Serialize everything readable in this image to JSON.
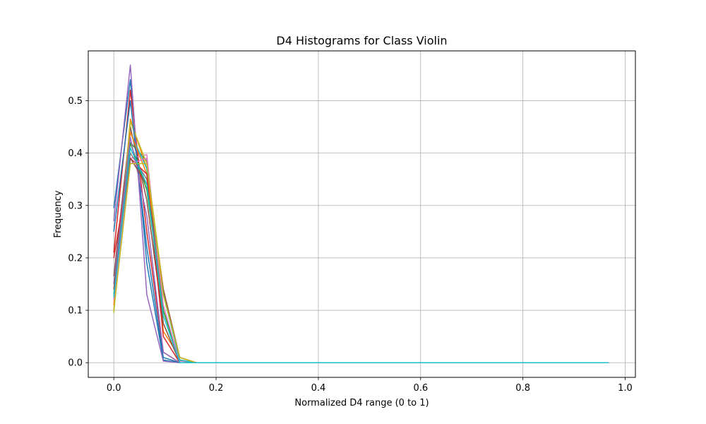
{
  "chart_data": {
    "type": "line",
    "title": "D4 Histograms for Class Violin",
    "xlabel": "Normalized D4 range (0 to 1)",
    "ylabel": "Frequency",
    "xlim": [
      -0.05,
      1.02
    ],
    "ylim": [
      -0.028,
      0.595
    ],
    "xticks": [
      0.0,
      0.2,
      0.4,
      0.6,
      0.8,
      1.0
    ],
    "xtick_labels": [
      "0.0",
      "0.2",
      "0.4",
      "0.6",
      "0.8",
      "1.0"
    ],
    "yticks": [
      0.0,
      0.1,
      0.2,
      0.3,
      0.4,
      0.5
    ],
    "ytick_labels": [
      "0.0",
      "0.1",
      "0.2",
      "0.3",
      "0.4",
      "0.5"
    ],
    "grid": true,
    "legend": "none",
    "x": [
      0.0,
      0.0323,
      0.0645,
      0.0968,
      0.129,
      0.1613,
      0.1935,
      0.2258,
      0.2581,
      0.2903,
      0.3226,
      0.3548,
      0.3871,
      0.4194,
      0.4516,
      0.4839,
      0.5161,
      0.5484,
      0.5806,
      0.6129,
      0.6452,
      0.6774,
      0.7097,
      0.7419,
      0.7742,
      0.8065,
      0.8387,
      0.871,
      0.9032,
      0.9355,
      0.9677
    ],
    "series": [
      {
        "color": "#1f77b4",
        "values": [
          0.295,
          0.54,
          0.19,
          0.005,
          0.0,
          0.0,
          0.0,
          0.0,
          0.0,
          0.0,
          0.0,
          0.0,
          0.0,
          0.0,
          0.0,
          0.0,
          0.0,
          0.0,
          0.0,
          0.0,
          0.0,
          0.0,
          0.0,
          0.0,
          0.0,
          0.0,
          0.0,
          0.0,
          0.0,
          0.0,
          0.0
        ]
      },
      {
        "color": "#ff7f0e",
        "values": [
          0.1,
          0.465,
          0.37,
          0.06,
          0.01,
          0.0,
          0.0,
          0.0,
          0.0,
          0.0,
          0.0,
          0.0,
          0.0,
          0.0,
          0.0,
          0.0,
          0.0,
          0.0,
          0.0,
          0.0,
          0.0,
          0.0,
          0.0,
          0.0,
          0.0,
          0.0,
          0.0,
          0.0,
          0.0,
          0.0,
          0.0
        ]
      },
      {
        "color": "#2ca02c",
        "values": [
          0.13,
          0.42,
          0.385,
          0.075,
          0.0,
          0.0,
          0.0,
          0.0,
          0.0,
          0.0,
          0.0,
          0.0,
          0.0,
          0.0,
          0.0,
          0.0,
          0.0,
          0.0,
          0.0,
          0.0,
          0.0,
          0.0,
          0.0,
          0.0,
          0.0,
          0.0,
          0.0,
          0.0,
          0.0,
          0.0,
          0.0
        ]
      },
      {
        "color": "#d62728",
        "values": [
          0.21,
          0.52,
          0.25,
          0.02,
          0.0,
          0.0,
          0.0,
          0.0,
          0.0,
          0.0,
          0.0,
          0.0,
          0.0,
          0.0,
          0.0,
          0.0,
          0.0,
          0.0,
          0.0,
          0.0,
          0.0,
          0.0,
          0.0,
          0.0,
          0.0,
          0.0,
          0.0,
          0.0,
          0.0,
          0.0,
          0.0
        ]
      },
      {
        "color": "#9467bd",
        "values": [
          0.27,
          0.568,
          0.13,
          0.003,
          0.0,
          0.0,
          0.0,
          0.0,
          0.0,
          0.0,
          0.0,
          0.0,
          0.0,
          0.0,
          0.0,
          0.0,
          0.0,
          0.0,
          0.0,
          0.0,
          0.0,
          0.0,
          0.0,
          0.0,
          0.0,
          0.0,
          0.0,
          0.0,
          0.0,
          0.0,
          0.0
        ]
      },
      {
        "color": "#8c564b",
        "values": [
          0.165,
          0.45,
          0.31,
          0.075,
          0.0,
          0.0,
          0.0,
          0.0,
          0.0,
          0.0,
          0.0,
          0.0,
          0.0,
          0.0,
          0.0,
          0.0,
          0.0,
          0.0,
          0.0,
          0.0,
          0.0,
          0.0,
          0.0,
          0.0,
          0.0,
          0.0,
          0.0,
          0.0,
          0.0,
          0.0,
          0.0
        ]
      },
      {
        "color": "#e377c2",
        "values": [
          0.11,
          0.39,
          0.397,
          0.1,
          0.003,
          0.0,
          0.0,
          0.0,
          0.0,
          0.0,
          0.0,
          0.0,
          0.0,
          0.0,
          0.0,
          0.0,
          0.0,
          0.0,
          0.0,
          0.0,
          0.0,
          0.0,
          0.0,
          0.0,
          0.0,
          0.0,
          0.0,
          0.0,
          0.0,
          0.0,
          0.0
        ]
      },
      {
        "color": "#7f7f7f",
        "values": [
          0.14,
          0.4,
          0.35,
          0.1,
          0.005,
          0.0,
          0.0,
          0.0,
          0.0,
          0.0,
          0.0,
          0.0,
          0.0,
          0.0,
          0.0,
          0.0,
          0.0,
          0.0,
          0.0,
          0.0,
          0.0,
          0.0,
          0.0,
          0.0,
          0.0,
          0.0,
          0.0,
          0.0,
          0.0,
          0.0,
          0.0
        ]
      },
      {
        "color": "#bcbd22",
        "values": [
          0.095,
          0.46,
          0.38,
          0.14,
          0.005,
          0.0,
          0.0,
          0.0,
          0.0,
          0.0,
          0.0,
          0.0,
          0.0,
          0.0,
          0.0,
          0.0,
          0.0,
          0.0,
          0.0,
          0.0,
          0.0,
          0.0,
          0.0,
          0.0,
          0.0,
          0.0,
          0.0,
          0.0,
          0.0,
          0.0,
          0.0
        ]
      },
      {
        "color": "#17becf",
        "values": [
          0.12,
          0.44,
          0.37,
          0.13,
          0.005,
          0.0,
          0.0,
          0.0,
          0.0,
          0.0,
          0.0,
          0.0,
          0.0,
          0.0,
          0.0,
          0.0,
          0.0,
          0.0,
          0.0,
          0.0,
          0.0,
          0.0,
          0.0,
          0.0,
          0.0,
          0.0,
          0.0,
          0.0,
          0.0,
          0.0,
          0.0
        ]
      },
      {
        "color": "#1f77b4",
        "values": [
          0.25,
          0.5,
          0.22,
          0.01,
          0.0,
          0.0,
          0.0,
          0.0,
          0.0,
          0.0,
          0.0,
          0.0,
          0.0,
          0.0,
          0.0,
          0.0,
          0.0,
          0.0,
          0.0,
          0.0,
          0.0,
          0.0,
          0.0,
          0.0,
          0.0,
          0.0,
          0.0,
          0.0,
          0.0,
          0.0,
          0.0
        ]
      },
      {
        "color": "#ff7f0e",
        "values": [
          0.11,
          0.44,
          0.36,
          0.14,
          0.01,
          0.0,
          0.0,
          0.0,
          0.0,
          0.0,
          0.0,
          0.0,
          0.0,
          0.0,
          0.0,
          0.0,
          0.0,
          0.0,
          0.0,
          0.0,
          0.0,
          0.0,
          0.0,
          0.0,
          0.0,
          0.0,
          0.0,
          0.0,
          0.0,
          0.0,
          0.0
        ]
      },
      {
        "color": "#2ca02c",
        "values": [
          0.15,
          0.42,
          0.33,
          0.1,
          0.0,
          0.0,
          0.0,
          0.0,
          0.0,
          0.0,
          0.0,
          0.0,
          0.0,
          0.0,
          0.0,
          0.0,
          0.0,
          0.0,
          0.0,
          0.0,
          0.0,
          0.0,
          0.0,
          0.0,
          0.0,
          0.0,
          0.0,
          0.0,
          0.0,
          0.0,
          0.0
        ]
      },
      {
        "color": "#d62728",
        "values": [
          0.2,
          0.39,
          0.36,
          0.05,
          0.0,
          0.0,
          0.0,
          0.0,
          0.0,
          0.0,
          0.0,
          0.0,
          0.0,
          0.0,
          0.0,
          0.0,
          0.0,
          0.0,
          0.0,
          0.0,
          0.0,
          0.0,
          0.0,
          0.0,
          0.0,
          0.0,
          0.0,
          0.0,
          0.0,
          0.0,
          0.0
        ]
      },
      {
        "color": "#9467bd",
        "values": [
          0.15,
          0.43,
          0.28,
          0.02,
          0.0,
          0.0,
          0.0,
          0.0,
          0.0,
          0.0,
          0.0,
          0.0,
          0.0,
          0.0,
          0.0,
          0.0,
          0.0,
          0.0,
          0.0,
          0.0,
          0.0,
          0.0,
          0.0,
          0.0,
          0.0,
          0.0,
          0.0,
          0.0,
          0.0,
          0.0,
          0.0
        ]
      },
      {
        "color": "#8c564b",
        "values": [
          0.14,
          0.39,
          0.34,
          0.14,
          0.01,
          0.0,
          0.0,
          0.0,
          0.0,
          0.0,
          0.0,
          0.0,
          0.0,
          0.0,
          0.0,
          0.0,
          0.0,
          0.0,
          0.0,
          0.0,
          0.0,
          0.0,
          0.0,
          0.0,
          0.0,
          0.0,
          0.0,
          0.0,
          0.0,
          0.0,
          0.0
        ]
      },
      {
        "color": "#e377c2",
        "values": [
          0.12,
          0.38,
          0.39,
          0.11,
          0.0,
          0.0,
          0.0,
          0.0,
          0.0,
          0.0,
          0.0,
          0.0,
          0.0,
          0.0,
          0.0,
          0.0,
          0.0,
          0.0,
          0.0,
          0.0,
          0.0,
          0.0,
          0.0,
          0.0,
          0.0,
          0.0,
          0.0,
          0.0,
          0.0,
          0.0,
          0.0
        ]
      },
      {
        "color": "#bcbd22",
        "values": [
          0.1,
          0.38,
          0.38,
          0.13,
          0.01,
          0.0,
          0.0,
          0.0,
          0.0,
          0.0,
          0.0,
          0.0,
          0.0,
          0.0,
          0.0,
          0.0,
          0.0,
          0.0,
          0.0,
          0.0,
          0.0,
          0.0,
          0.0,
          0.0,
          0.0,
          0.0,
          0.0,
          0.0,
          0.0,
          0.0,
          0.0
        ]
      },
      {
        "color": "#17becf",
        "values": [
          0.125,
          0.41,
          0.34,
          0.09,
          0.0,
          0.0,
          0.0,
          0.0,
          0.0,
          0.0,
          0.0,
          0.0,
          0.0,
          0.0,
          0.0,
          0.0,
          0.0,
          0.0,
          0.0,
          0.0,
          0.0,
          0.0,
          0.0,
          0.0,
          0.0,
          0.0,
          0.0,
          0.0,
          0.0,
          0.0,
          0.0
        ]
      }
    ]
  }
}
